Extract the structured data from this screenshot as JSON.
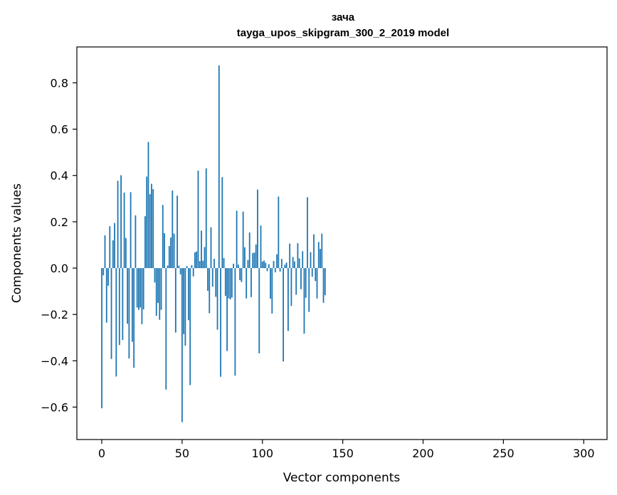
{
  "chart_data": {
    "type": "bar",
    "title_line1": "зача",
    "title_line2": "tayga_upos_skipgram_300_2_2019 model",
    "xlabel": "Vector components",
    "ylabel": "Components values",
    "xlim": [
      -15.5,
      314.5
    ],
    "ylim": [
      -0.74,
      0.955
    ],
    "grid": false,
    "bar_color": "#1f77b4",
    "xticks": [
      {
        "value": 0,
        "label": "0"
      },
      {
        "value": 50,
        "label": "50"
      },
      {
        "value": 100,
        "label": "100"
      },
      {
        "value": 150,
        "label": "150"
      },
      {
        "value": 200,
        "label": "200"
      },
      {
        "value": 250,
        "label": "250"
      },
      {
        "value": 300,
        "label": "300"
      }
    ],
    "yticks": [
      {
        "value": -0.6,
        "label": "−0.6"
      },
      {
        "value": -0.4,
        "label": "−0.4"
      },
      {
        "value": -0.2,
        "label": "−0.2"
      },
      {
        "value": 0.0,
        "label": "0.0"
      },
      {
        "value": 0.2,
        "label": "0.2"
      },
      {
        "value": 0.4,
        "label": "0.4"
      },
      {
        "value": 0.6,
        "label": "0.6"
      },
      {
        "value": 0.8,
        "label": "0.8"
      }
    ],
    "values": [
      -0.605,
      -0.031,
      0.142,
      -0.235,
      -0.076,
      0.181,
      -0.392,
      0.12,
      0.195,
      -0.468,
      0.377,
      -0.332,
      0.401,
      -0.31,
      0.326,
      0.13,
      -0.24,
      -0.39,
      0.328,
      -0.318,
      -0.43,
      0.228,
      -0.17,
      -0.18,
      -0.17,
      -0.242,
      -0.178,
      0.224,
      0.395,
      0.545,
      0.319,
      0.364,
      0.341,
      -0.062,
      -0.206,
      -0.15,
      -0.223,
      -0.18,
      0.273,
      0.151,
      -0.524,
      0.011,
      0.095,
      0.132,
      0.335,
      0.149,
      -0.278,
      0.313,
      0.011,
      -0.027,
      -0.665,
      -0.285,
      -0.335,
      0.009,
      -0.225,
      -0.505,
      0.013,
      -0.036,
      0.068,
      0.072,
      0.421,
      0.03,
      0.162,
      0.032,
      0.091,
      0.431,
      -0.098,
      -0.195,
      0.176,
      -0.08,
      0.04,
      -0.124,
      -0.266,
      0.875,
      -0.469,
      0.393,
      0.043,
      -0.12,
      -0.358,
      -0.13,
      -0.135,
      -0.127,
      0.019,
      -0.464,
      0.248,
      0.015,
      -0.052,
      -0.06,
      0.244,
      0.09,
      -0.131,
      0.035,
      0.154,
      -0.125,
      0.065,
      0.067,
      0.102,
      0.339,
      -0.368,
      0.184,
      0.028,
      0.033,
      0.023,
      -0.013,
      0.017,
      -0.132,
      -0.196,
      0.031,
      -0.018,
      0.06,
      0.309,
      -0.015,
      0.04,
      -0.403,
      0.015,
      0.024,
      -0.271,
      0.106,
      -0.163,
      0.048,
      0.029,
      -0.115,
      0.108,
      0.042,
      -0.091,
      0.073,
      -0.283,
      -0.128,
      0.306,
      -0.189,
      0.069,
      -0.037,
      0.146,
      -0.056,
      -0.131,
      0.113,
      0.083,
      0.149,
      -0.15,
      -0.117
    ]
  }
}
